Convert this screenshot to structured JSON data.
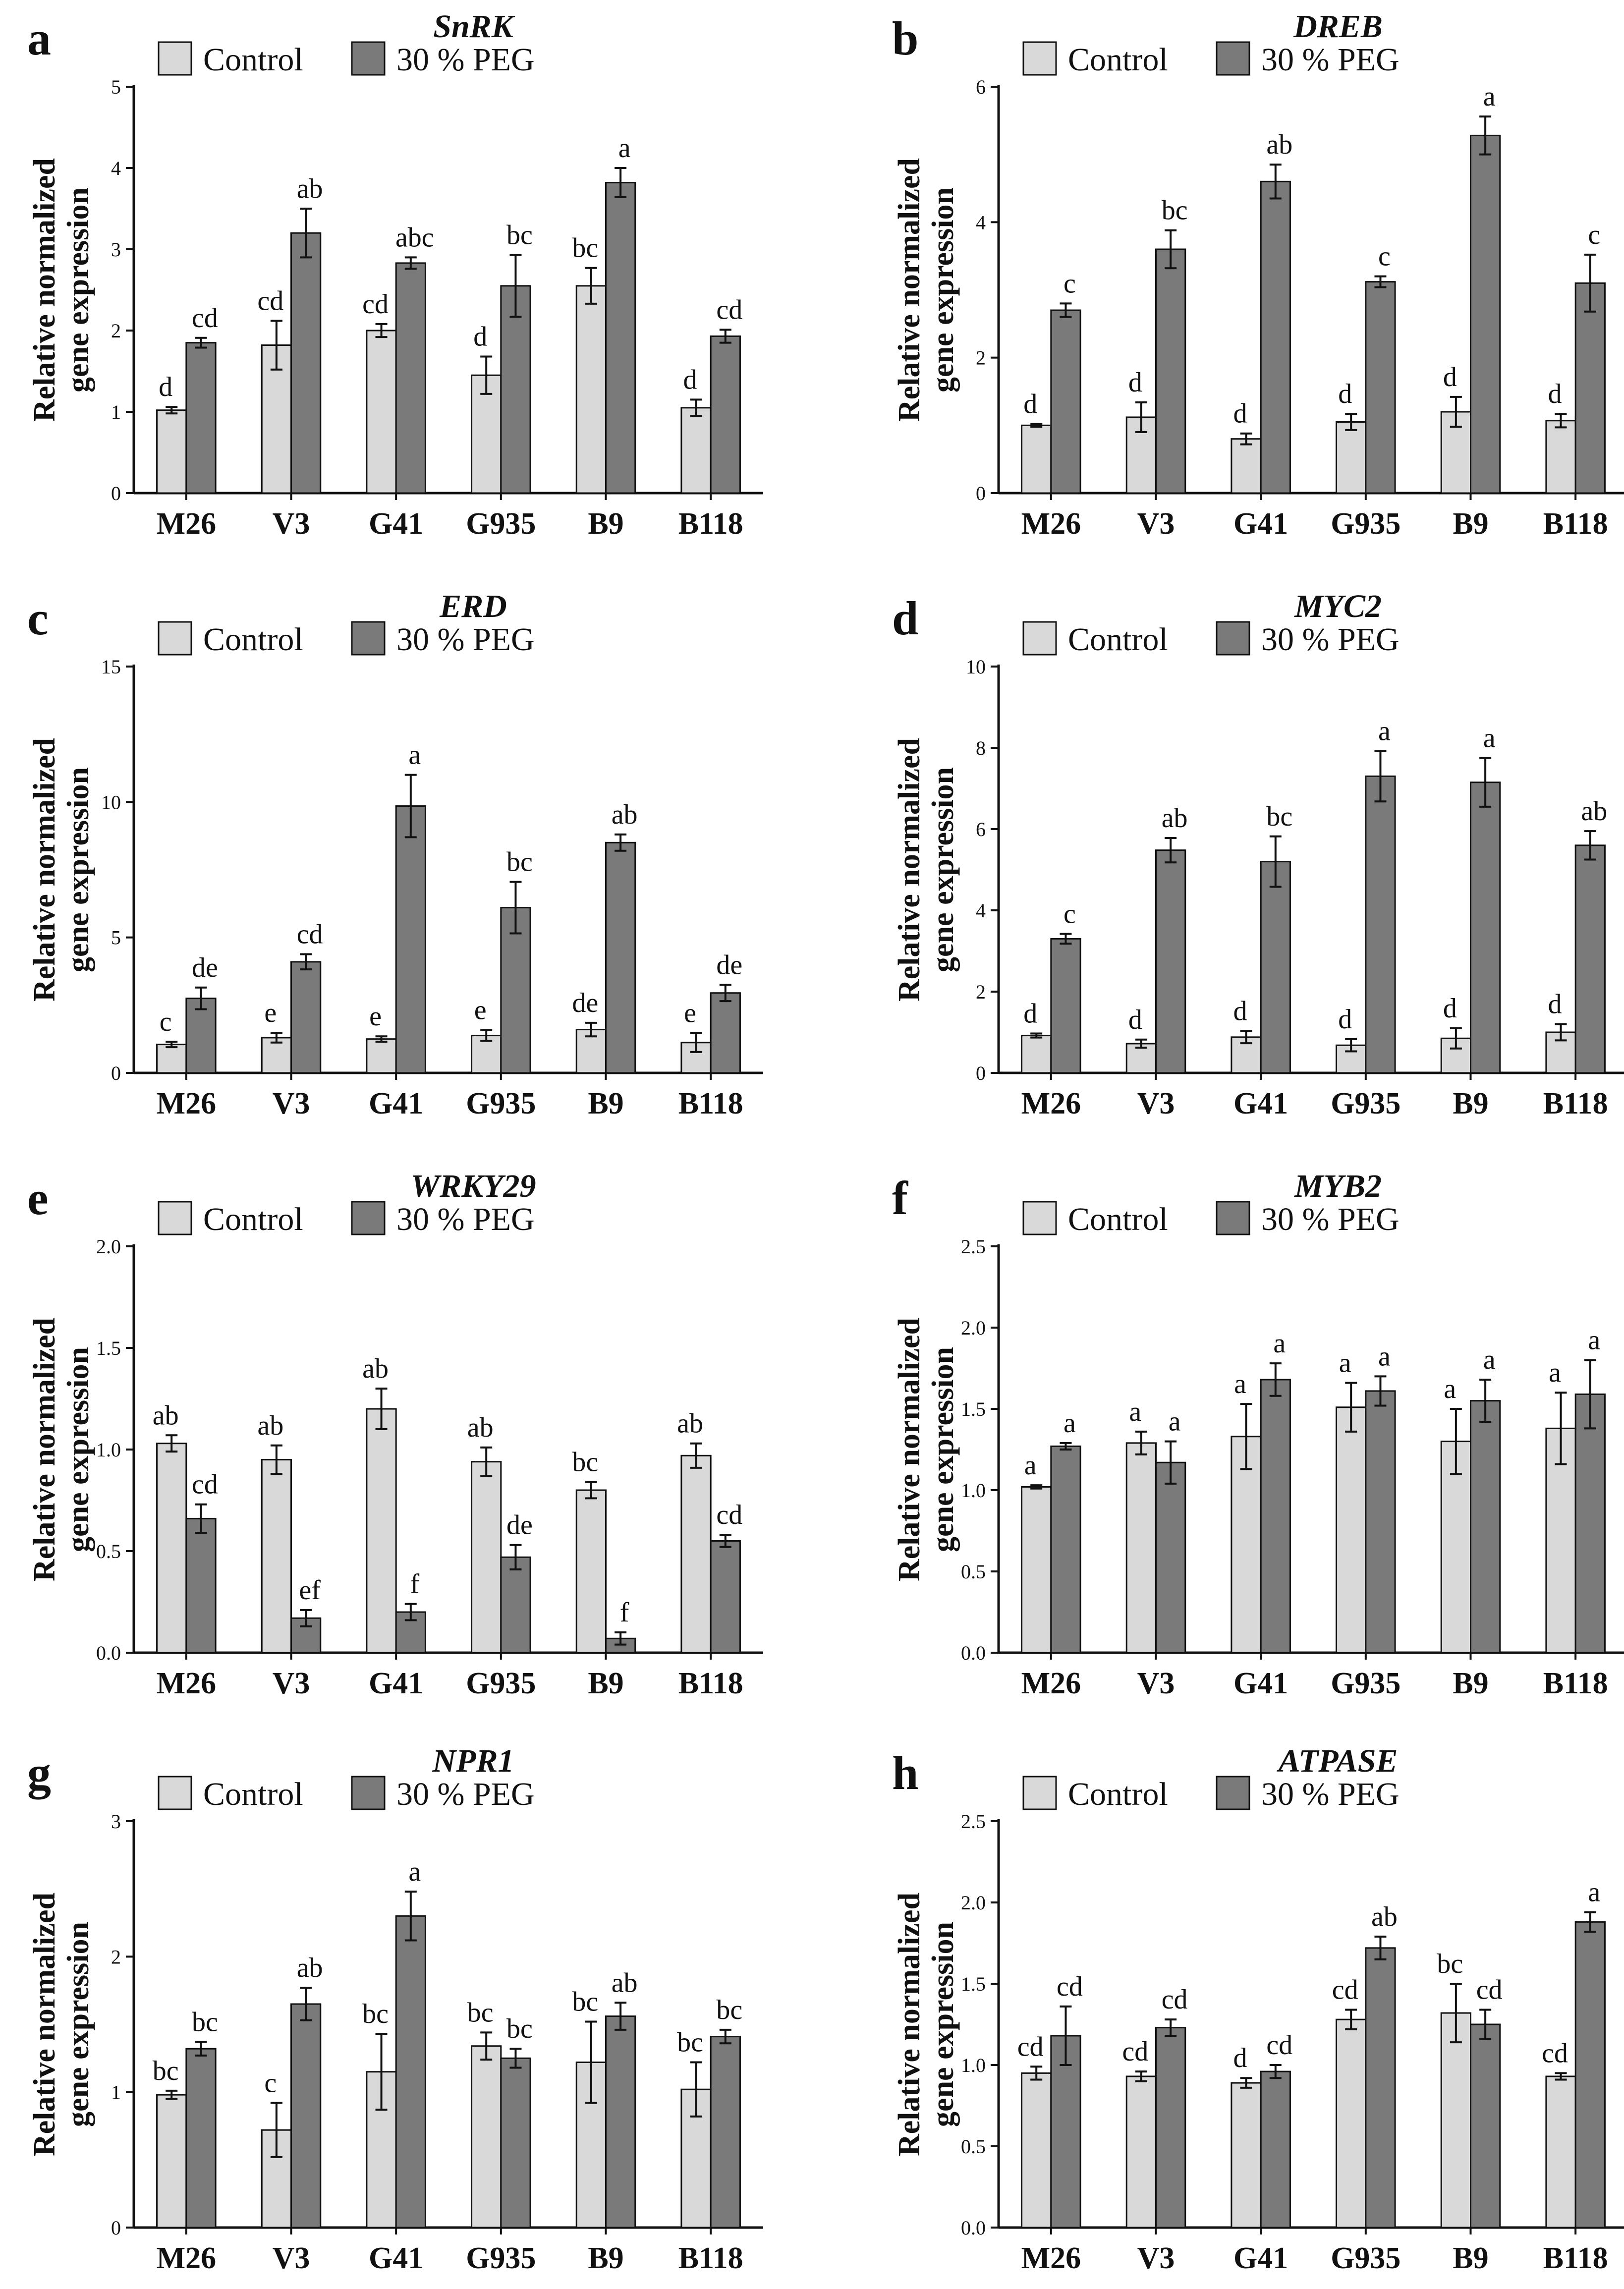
{
  "figure": {
    "categories": [
      "M26",
      "V3",
      "G41",
      "G935",
      "B9",
      "B118"
    ],
    "ylabel": [
      "Relative normalized",
      "gene expression"
    ],
    "legend": [
      "Control",
      "30 % PEG"
    ],
    "colors": {
      "control": "#d9d9d9",
      "peg": "#7a7a7a",
      "axis": "#111111",
      "text": "#111111"
    }
  },
  "chart_data": [
    {
      "panel": "a",
      "title": "SnRK",
      "type": "bar",
      "categories": [
        "M26",
        "V3",
        "G41",
        "G935",
        "B9",
        "B118"
      ],
      "ylim": [
        0,
        5
      ],
      "yticks": [
        0,
        1,
        2,
        3,
        4,
        5
      ],
      "tick_labels": [
        "0",
        "1",
        "2",
        "3",
        "4",
        "5"
      ],
      "series": [
        {
          "name": "Control",
          "values": [
            1.02,
            1.82,
            2.0,
            1.45,
            2.55,
            1.05
          ],
          "errors": [
            0.04,
            0.3,
            0.08,
            0.23,
            0.22,
            0.1
          ],
          "letters": [
            "d",
            "cd",
            "cd",
            "d",
            "bc",
            "d"
          ]
        },
        {
          "name": "30 % PEG",
          "values": [
            1.85,
            3.2,
            2.83,
            2.55,
            3.82,
            1.93
          ],
          "errors": [
            0.06,
            0.3,
            0.07,
            0.38,
            0.18,
            0.08
          ],
          "letters": [
            "cd",
            "ab",
            "abc",
            "bc",
            "a",
            "cd"
          ]
        }
      ]
    },
    {
      "panel": "b",
      "title": "DREB",
      "type": "bar",
      "categories": [
        "M26",
        "V3",
        "G41",
        "G935",
        "B9",
        "B118"
      ],
      "ylim": [
        0,
        6
      ],
      "yticks": [
        0,
        2,
        4,
        6
      ],
      "tick_labels": [
        "0",
        "2",
        "4",
        "6"
      ],
      "series": [
        {
          "name": "Control",
          "values": [
            1.0,
            1.12,
            0.8,
            1.05,
            1.2,
            1.07
          ],
          "errors": [
            0.02,
            0.22,
            0.08,
            0.12,
            0.22,
            0.1
          ],
          "letters": [
            "d",
            "d",
            "d",
            "d",
            "d",
            "d"
          ]
        },
        {
          "name": "30 % PEG",
          "values": [
            2.7,
            3.6,
            4.6,
            3.12,
            5.28,
            3.1
          ],
          "errors": [
            0.1,
            0.28,
            0.25,
            0.08,
            0.28,
            0.42
          ],
          "letters": [
            "c",
            "bc",
            "ab",
            "c",
            "a",
            "c"
          ]
        }
      ]
    },
    {
      "panel": "c",
      "title": "ERD",
      "type": "bar",
      "categories": [
        "M26",
        "V3",
        "G41",
        "G935",
        "B9",
        "B118"
      ],
      "ylim": [
        0,
        15
      ],
      "yticks": [
        0,
        5,
        10,
        15
      ],
      "tick_labels": [
        "0",
        "5",
        "10",
        "15"
      ],
      "series": [
        {
          "name": "Control",
          "values": [
            1.05,
            1.3,
            1.25,
            1.38,
            1.6,
            1.12
          ],
          "errors": [
            0.1,
            0.18,
            0.1,
            0.2,
            0.25,
            0.35
          ],
          "letters": [
            "c",
            "e",
            "e",
            "e",
            "de",
            "e"
          ]
        },
        {
          "name": "30 % PEG",
          "values": [
            2.75,
            4.1,
            9.85,
            6.1,
            8.5,
            2.95
          ],
          "errors": [
            0.4,
            0.28,
            1.15,
            0.95,
            0.3,
            0.3
          ],
          "letters": [
            "de",
            "cd",
            "a",
            "bc",
            "ab",
            "de"
          ]
        }
      ]
    },
    {
      "panel": "d",
      "title": "MYC2",
      "type": "bar",
      "categories": [
        "M26",
        "V3",
        "G41",
        "G935",
        "B9",
        "B118"
      ],
      "ylim": [
        0,
        10
      ],
      "yticks": [
        0,
        2,
        4,
        6,
        8,
        10
      ],
      "tick_labels": [
        "0",
        "2",
        "4",
        "6",
        "8",
        "10"
      ],
      "series": [
        {
          "name": "Control",
          "values": [
            0.92,
            0.72,
            0.88,
            0.68,
            0.85,
            1.0
          ],
          "errors": [
            0.05,
            0.1,
            0.15,
            0.15,
            0.25,
            0.2
          ],
          "letters": [
            "d",
            "d",
            "d",
            "d",
            "d",
            "d"
          ]
        },
        {
          "name": "30 % PEG",
          "values": [
            3.3,
            5.48,
            5.2,
            7.3,
            7.15,
            5.6
          ],
          "errors": [
            0.12,
            0.3,
            0.62,
            0.62,
            0.6,
            0.35
          ],
          "letters": [
            "c",
            "ab",
            "bc",
            "a",
            "a",
            "ab"
          ]
        }
      ]
    },
    {
      "panel": "e",
      "title": "WRKY29",
      "type": "bar",
      "categories": [
        "M26",
        "V3",
        "G41",
        "G935",
        "B9",
        "B118"
      ],
      "ylim": [
        0,
        2
      ],
      "yticks": [
        0,
        0.5,
        1,
        1.5,
        2
      ],
      "tick_labels": [
        "0.0",
        "0.5",
        "1.0",
        "1.5",
        "2.0"
      ],
      "series": [
        {
          "name": "Control",
          "values": [
            1.03,
            0.95,
            1.2,
            0.94,
            0.8,
            0.97
          ],
          "errors": [
            0.04,
            0.07,
            0.1,
            0.07,
            0.04,
            0.06
          ],
          "letters": [
            "ab",
            "ab",
            "ab",
            "ab",
            "bc",
            "ab"
          ]
        },
        {
          "name": "30 % PEG",
          "values": [
            0.66,
            0.17,
            0.2,
            0.47,
            0.07,
            0.55
          ],
          "errors": [
            0.07,
            0.04,
            0.04,
            0.06,
            0.03,
            0.03
          ],
          "letters": [
            "cd",
            "ef",
            "f",
            "de",
            "f",
            "cd"
          ]
        }
      ]
    },
    {
      "panel": "f",
      "title": "MYB2",
      "type": "bar",
      "categories": [
        "M26",
        "V3",
        "G41",
        "G935",
        "B9",
        "B118"
      ],
      "ylim": [
        0,
        2.5
      ],
      "yticks": [
        0,
        0.5,
        1,
        1.5,
        2,
        2.5
      ],
      "tick_labels": [
        "0.0",
        "0.5",
        "1.0",
        "1.5",
        "2.0",
        "2.5"
      ],
      "series": [
        {
          "name": "Control",
          "values": [
            1.02,
            1.29,
            1.33,
            1.51,
            1.3,
            1.38
          ],
          "errors": [
            0.01,
            0.07,
            0.2,
            0.15,
            0.2,
            0.22
          ],
          "letters": [
            "a",
            "a",
            "a",
            "a",
            "a",
            "a"
          ]
        },
        {
          "name": "30 % PEG",
          "values": [
            1.27,
            1.17,
            1.68,
            1.61,
            1.55,
            1.59
          ],
          "errors": [
            0.02,
            0.13,
            0.1,
            0.09,
            0.13,
            0.21
          ],
          "letters": [
            "a",
            "a",
            "a",
            "a",
            "a",
            "a"
          ]
        }
      ]
    },
    {
      "panel": "g",
      "title": "NPR1",
      "type": "bar",
      "categories": [
        "M26",
        "V3",
        "G41",
        "G935",
        "B9",
        "B118"
      ],
      "ylim": [
        0,
        3
      ],
      "yticks": [
        0,
        1,
        2,
        3
      ],
      "tick_labels": [
        "0",
        "1",
        "2",
        "3"
      ],
      "series": [
        {
          "name": "Control",
          "values": [
            0.98,
            0.72,
            1.15,
            1.34,
            1.22,
            1.02
          ],
          "errors": [
            0.03,
            0.2,
            0.28,
            0.1,
            0.3,
            0.2
          ],
          "letters": [
            "bc",
            "c",
            "bc",
            "bc",
            "bc",
            "bc"
          ]
        },
        {
          "name": "30 % PEG",
          "values": [
            1.32,
            1.65,
            2.3,
            1.25,
            1.56,
            1.41
          ],
          "errors": [
            0.05,
            0.12,
            0.18,
            0.07,
            0.1,
            0.05
          ],
          "letters": [
            "bc",
            "ab",
            "a",
            "bc",
            "ab",
            "bc"
          ]
        }
      ]
    },
    {
      "panel": "h",
      "title": "ATPASE",
      "type": "bar",
      "categories": [
        "M26",
        "V3",
        "G41",
        "G935",
        "B9",
        "B118"
      ],
      "ylim": [
        0,
        2.5
      ],
      "yticks": [
        0,
        0.5,
        1,
        1.5,
        2,
        2.5
      ],
      "tick_labels": [
        "0.0",
        "0.5",
        "1.0",
        "1.5",
        "2.0",
        "2.5"
      ],
      "series": [
        {
          "name": "Control",
          "values": [
            0.95,
            0.93,
            0.89,
            1.28,
            1.32,
            0.93
          ],
          "errors": [
            0.04,
            0.03,
            0.03,
            0.06,
            0.18,
            0.02
          ],
          "letters": [
            "cd",
            "cd",
            "d",
            "cd",
            "bc",
            "cd"
          ]
        },
        {
          "name": "30 % PEG",
          "values": [
            1.18,
            1.23,
            0.96,
            1.72,
            1.25,
            1.88
          ],
          "errors": [
            0.18,
            0.05,
            0.04,
            0.07,
            0.09,
            0.06
          ],
          "letters": [
            "cd",
            "cd",
            "cd",
            "ab",
            "cd",
            "a"
          ]
        }
      ]
    }
  ]
}
